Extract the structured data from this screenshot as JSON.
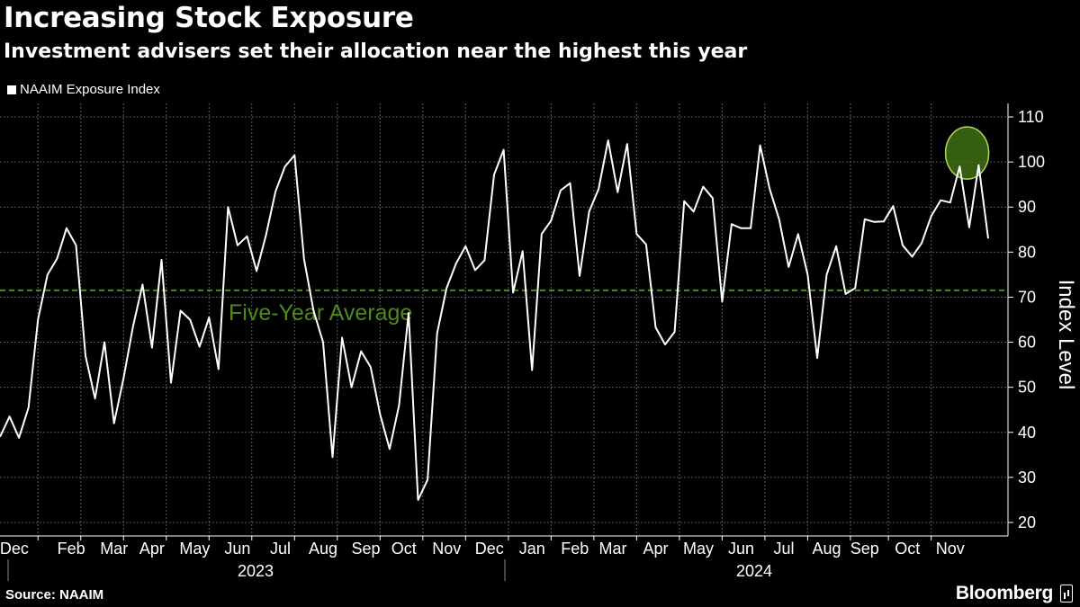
{
  "title": "Increasing Stock Exposure",
  "subtitle": "Investment advisers set their allocation near the highest this year",
  "source": "Source: NAAIM",
  "brand": "Bloomberg",
  "brand_icon": "bloomberg-chart-icon",
  "colors": {
    "background": "#000000",
    "line": "#ffffff",
    "average": "#4e8a1a",
    "highlight": "#b6d65a"
  },
  "chart_data": {
    "type": "line",
    "title": "Increasing Stock Exposure",
    "ylabel": "Index Level",
    "xlabel": "",
    "ylim": [
      17,
      113
    ],
    "yticks": [
      20,
      30,
      40,
      50,
      60,
      70,
      80,
      90,
      100,
      110
    ],
    "grid": true,
    "legend": "top-left",
    "month_labels": [
      "Dec",
      "Feb",
      "Mar",
      "Apr",
      "May",
      "Jun",
      "Jul",
      "Aug",
      "Sep",
      "Oct",
      "Nov",
      "Dec",
      "Jan",
      "Feb",
      "Mar",
      "Apr",
      "May",
      "Jun",
      "Jul",
      "Aug",
      "Sep",
      "Oct",
      "Nov"
    ],
    "year_labels": [
      "2023",
      "2024"
    ],
    "average": {
      "label": "Five-Year Average",
      "value": 71.5
    },
    "highlight": {
      "description": "recent peak",
      "value": 101,
      "week_index": 101.5
    },
    "series": [
      {
        "name": "NAAIM Exposure Index",
        "values": [
          39,
          43.5,
          38.8,
          45.5,
          65,
          75,
          78.5,
          85.3,
          81.5,
          57,
          47.5,
          60,
          42,
          52,
          63.5,
          72.8,
          58.8,
          78.3,
          51,
          67,
          65,
          59,
          65.5,
          54,
          90,
          81.5,
          83.5,
          75.8,
          83.8,
          93.5,
          99,
          101.5,
          78.5,
          67,
          60,
          34.5,
          61,
          50,
          58,
          54.5,
          44,
          36.3,
          46,
          66.5,
          25,
          29.5,
          62,
          72,
          77.5,
          81.3,
          76,
          78.2,
          97.2,
          102.7,
          71,
          80.2,
          53.8,
          84,
          87,
          93.7,
          95.3,
          74.7,
          89,
          94,
          104.8,
          93.3,
          104,
          84,
          81.7,
          63.3,
          59.5,
          62.3,
          91.3,
          89,
          94.5,
          92,
          69,
          86.2,
          85.3,
          85.3,
          103.7,
          94,
          87.3,
          76.7,
          84,
          75,
          56.5,
          75,
          81.3,
          70.7,
          72,
          87.3,
          86.7,
          86.8,
          90.2,
          81.5,
          79,
          82,
          88,
          91.5,
          91,
          99,
          85.5,
          99.3,
          83
        ]
      }
    ]
  }
}
